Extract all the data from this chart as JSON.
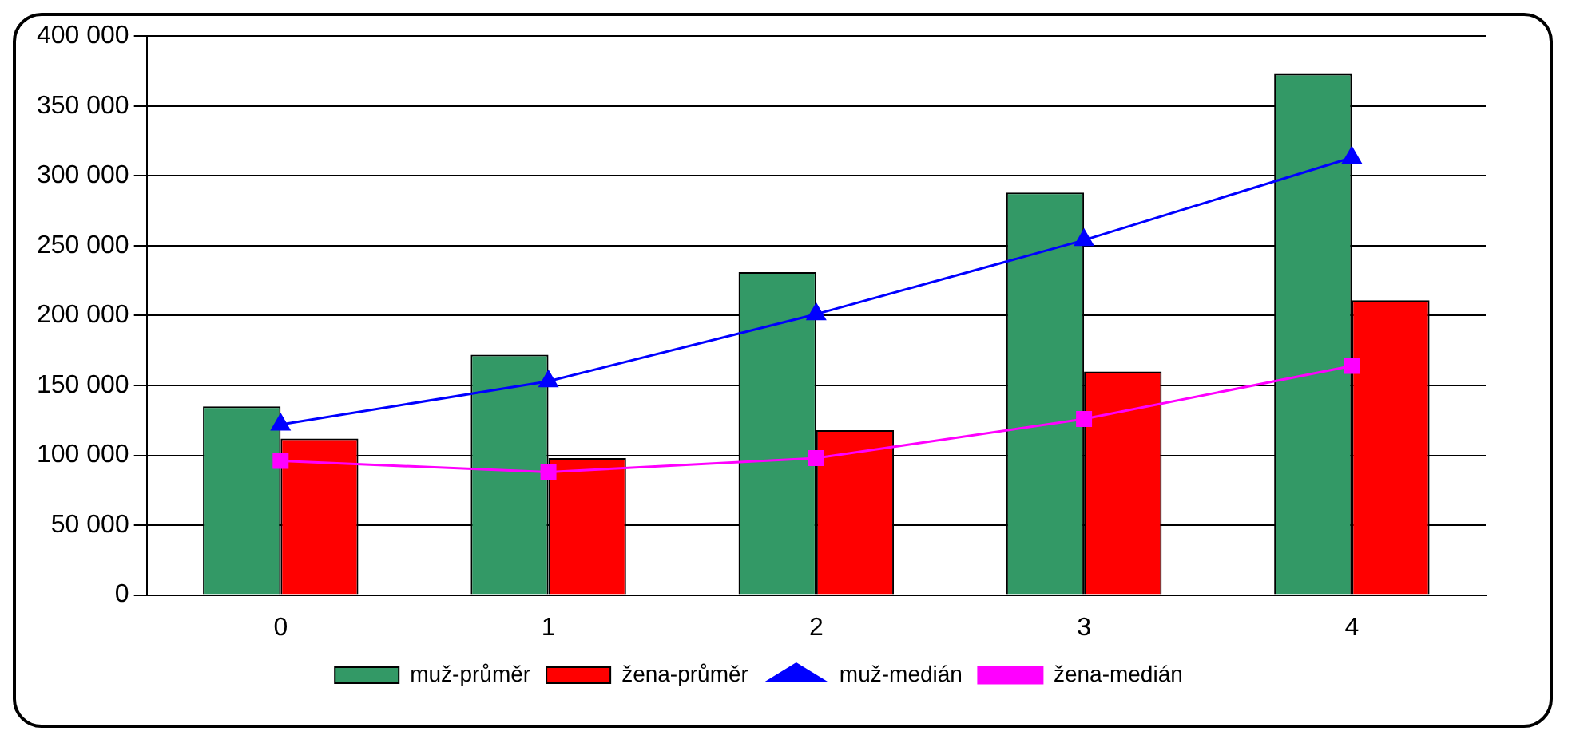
{
  "chart_data": {
    "type": "bar",
    "categories": [
      "0",
      "1",
      "2",
      "3",
      "4"
    ],
    "series": [
      {
        "name": "muž-průměr",
        "color": "#339966",
        "values": [
          135000,
          172000,
          231000,
          288000,
          373000
        ]
      },
      {
        "name": "žena-průměr",
        "color": "#ff0000",
        "values": [
          112000,
          98000,
          118000,
          160000,
          211000
        ]
      },
      {
        "name": "muž-medián",
        "type": "line",
        "color": "#0000ff",
        "marker": "triangle",
        "values": [
          122000,
          153000,
          201000,
          254000,
          313000
        ]
      },
      {
        "name": "žena-medián",
        "type": "line",
        "color": "#ff00ff",
        "marker": "square",
        "values": [
          96000,
          88000,
          98000,
          126000,
          164000
        ]
      }
    ],
    "ylim": [
      0,
      400000
    ],
    "yticks": [
      0,
      50000,
      100000,
      150000,
      200000,
      250000,
      300000,
      350000,
      400000
    ],
    "grid": "y",
    "legend": "bottom"
  }
}
